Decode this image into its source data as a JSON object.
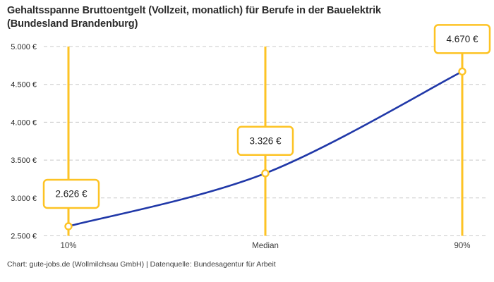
{
  "title": {
    "line1": "Gehaltsspanne Bruttoentgelt (Vollzeit, monatlich) für Berufe in der Bauelektrik",
    "line2": "(Bundesland Brandenburg)"
  },
  "footer": "Chart: gute-jobs.de (Wollmilchsau GmbH) | Datenquelle: Bundesagentur für Arbeit",
  "colors": {
    "accent_yellow": "#FDC324",
    "line_blue": "#2038A8",
    "grid": "#c9c9c9",
    "text_dark": "#2b2b2b",
    "text_muted": "#3c3c3c",
    "box_fill": "#ffffff"
  },
  "chart_data": {
    "type": "line",
    "title": "Gehaltsspanne Bruttoentgelt (Vollzeit, monatlich) für Berufe in der Bauelektrik (Bundesland Brandenburg)",
    "categories": [
      "10%",
      "Median",
      "90%"
    ],
    "values": [
      2626,
      3326,
      4670
    ],
    "point_labels": [
      "2.626 €",
      "3.326 €",
      "4.670 €"
    ],
    "xlabel": "",
    "ylabel": "",
    "ylim": [
      2500,
      5000
    ],
    "yticks": [
      2500,
      3000,
      3500,
      4000,
      4500,
      5000
    ],
    "ytick_labels": [
      "2.500 €",
      "3.000 €",
      "3.500 €",
      "4.000 €",
      "4.500 €",
      "5.000 €"
    ],
    "grid": "dashed-horizontal",
    "legend": "none",
    "curve": "smooth"
  }
}
